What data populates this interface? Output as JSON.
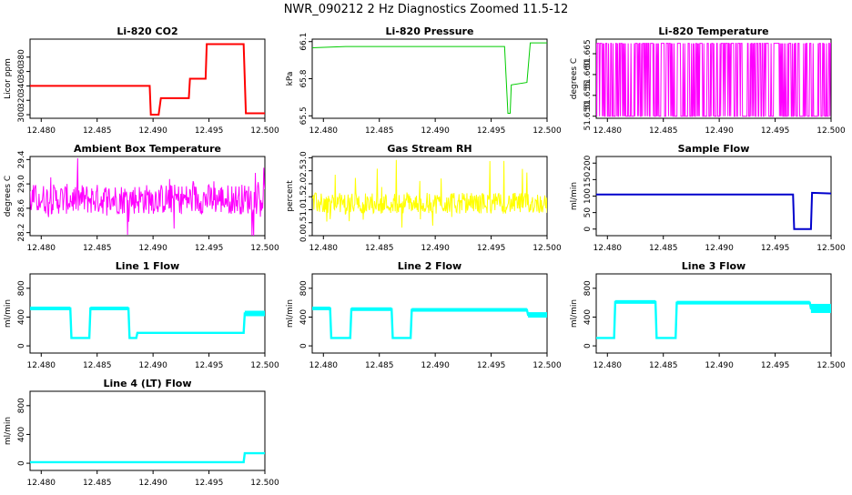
{
  "main_title": "NWR_090212  2 Hz Diagnostics Zoomed 11.5-12",
  "colors": {
    "red": "#ff0000",
    "green": "#00cc00",
    "magenta": "#ff00ff",
    "yellow": "#ffff00",
    "blue": "#0000cc",
    "cyan": "#00ffff"
  },
  "chart_data": [
    {
      "type": "line",
      "title": "Li-820 CO2",
      "ylabel": "Licor ppm",
      "xlim": [
        12.479,
        12.5
      ],
      "ylim": [
        295,
        405
      ],
      "xticks": [
        "12.480",
        "12.485",
        "12.490",
        "12.495",
        "12.500"
      ],
      "yticks": [
        "300",
        "320",
        "340",
        "360",
        "380"
      ],
      "color": "red",
      "series": [
        {
          "name": "CO2",
          "x": [
            12.479,
            12.4897,
            12.4898,
            12.4905,
            12.4907,
            12.4917,
            12.4918,
            12.4932,
            12.4933,
            12.4947,
            12.4948,
            12.4981,
            12.4983,
            12.5
          ],
          "values": [
            340,
            340,
            300,
            300,
            323,
            323,
            323,
            323,
            350,
            350,
            398,
            398,
            302,
            302
          ]
        }
      ]
    },
    {
      "type": "line",
      "title": "Li-820 Pressure",
      "ylabel": "kPa",
      "xlim": [
        12.479,
        12.5
      ],
      "ylim": [
        65.48,
        66.12
      ],
      "xticks": [
        "12.480",
        "12.485",
        "12.490",
        "12.495",
        "12.500"
      ],
      "yticks": [
        "65.5",
        "65.8",
        "66.1"
      ],
      "color": "green",
      "series": [
        {
          "name": "Pressure",
          "x": [
            12.479,
            12.482,
            12.486,
            12.49,
            12.494,
            12.4962,
            12.4965,
            12.4967,
            12.4968,
            12.4982,
            12.4985,
            12.5
          ],
          "values": [
            66.05,
            66.06,
            66.06,
            66.06,
            66.06,
            66.06,
            65.52,
            65.52,
            65.75,
            65.77,
            66.09,
            66.09
          ]
        }
      ]
    },
    {
      "type": "line",
      "title": "Li-820 Temperature",
      "ylabel": "degrees C",
      "xlim": [
        12.479,
        12.5
      ],
      "ylim": [
        51.6495,
        51.6685
      ],
      "xticks": [
        "12.480",
        "12.485",
        "12.490",
        "12.495",
        "12.500"
      ],
      "yticks": [
        "51.650",
        "51.655",
        "51.660",
        "51.665"
      ],
      "color": "magenta",
      "series": [
        {
          "name": "Temperature",
          "x": [],
          "values": []
        }
      ]
    },
    {
      "type": "line",
      "title": "Ambient Box Temperature",
      "ylabel": "degrees C",
      "xlim": [
        12.479,
        12.5
      ],
      "ylim": [
        28.15,
        29.45
      ],
      "xticks": [
        "12.480",
        "12.485",
        "12.490",
        "12.495",
        "12.500"
      ],
      "yticks": [
        "28.2",
        "28.6",
        "29.0",
        "29.4"
      ],
      "color": "magenta",
      "series": [
        {
          "name": "Box Temp",
          "x": [],
          "values": []
        }
      ]
    },
    {
      "type": "line",
      "title": "Gas Stream RH",
      "ylabel": "percent",
      "xlim": [
        12.479,
        12.5
      ],
      "ylim": [
        0,
        3.05
      ],
      "xticks": [
        "12.480",
        "12.485",
        "12.490",
        "12.495",
        "12.500"
      ],
      "yticks": [
        "0.0",
        "0.5",
        "1.0",
        "1.5",
        "2.0",
        "2.5",
        "3.0"
      ],
      "color": "yellow",
      "series": [
        {
          "name": "RH",
          "x": [],
          "values": []
        }
      ]
    },
    {
      "type": "line",
      "title": "Sample Flow",
      "ylabel": "ml/min",
      "xlim": [
        12.479,
        12.5
      ],
      "ylim": [
        -20,
        220
      ],
      "xticks": [
        "12.480",
        "12.485",
        "12.490",
        "12.495",
        "12.500"
      ],
      "yticks": [
        "0",
        "50",
        "100",
        "150",
        "200"
      ],
      "color": "blue",
      "series": [
        {
          "name": "Sample Flow",
          "x": [
            12.479,
            12.4966,
            12.4967,
            12.4982,
            12.4983,
            12.5
          ],
          "values": [
            105,
            105,
            0,
            0,
            110,
            108
          ]
        }
      ]
    },
    {
      "type": "line",
      "title": "Line 1 Flow",
      "ylabel": "ml/min",
      "xlim": [
        12.479,
        12.5
      ],
      "ylim": [
        -100,
        1000
      ],
      "xticks": [
        "12.480",
        "12.485",
        "12.490",
        "12.495",
        "12.500"
      ],
      "yticks": [
        "0",
        "400",
        "800"
      ],
      "color": "cyan",
      "series": [
        {
          "name": "Line 1",
          "x": [
            12.479,
            12.4826,
            12.4827,
            12.4843,
            12.4844,
            12.4878,
            12.4879,
            12.4885,
            12.4886,
            12.4981,
            12.4982,
            12.5
          ],
          "values": [
            520,
            520,
            110,
            110,
            520,
            520,
            110,
            110,
            180,
            180,
            450,
            450
          ]
        }
      ]
    },
    {
      "type": "line",
      "title": "Line 2 Flow",
      "ylabel": "ml/min",
      "xlim": [
        12.479,
        12.5
      ],
      "ylim": [
        -100,
        1000
      ],
      "xticks": [
        "12.480",
        "12.485",
        "12.490",
        "12.495",
        "12.500"
      ],
      "yticks": [
        "0",
        "400",
        "800"
      ],
      "color": "cyan",
      "series": [
        {
          "name": "Line 2",
          "x": [
            12.479,
            12.4806,
            12.4807,
            12.4824,
            12.4825,
            12.4861,
            12.4862,
            12.4878,
            12.4879,
            12.4982,
            12.4983,
            12.5
          ],
          "values": [
            520,
            520,
            110,
            110,
            510,
            510,
            110,
            110,
            500,
            500,
            430,
            430
          ]
        }
      ]
    },
    {
      "type": "line",
      "title": "Line 3 Flow",
      "ylabel": "ml/min",
      "xlim": [
        12.479,
        12.5
      ],
      "ylim": [
        -100,
        1000
      ],
      "xticks": [
        "12.480",
        "12.485",
        "12.490",
        "12.495",
        "12.500"
      ],
      "yticks": [
        "0",
        "400",
        "800"
      ],
      "color": "cyan",
      "series": [
        {
          "name": "Line 3",
          "x": [
            12.479,
            12.4806,
            12.4807,
            12.4843,
            12.4844,
            12.4861,
            12.4862,
            12.4981,
            12.4982,
            12.5
          ],
          "values": [
            110,
            110,
            610,
            610,
            110,
            110,
            600,
            600,
            520,
            520
          ]
        }
      ]
    },
    {
      "type": "line",
      "title": "Line 4 (LT) Flow",
      "ylabel": "ml/min",
      "xlim": [
        12.479,
        12.5
      ],
      "ylim": [
        -100,
        1000
      ],
      "xticks": [
        "12.480",
        "12.485",
        "12.490",
        "12.495",
        "12.500"
      ],
      "yticks": [
        "0",
        "400",
        "800"
      ],
      "color": "cyan",
      "series": [
        {
          "name": "Line 4",
          "x": [
            12.479,
            12.4981,
            12.4982,
            12.5
          ],
          "values": [
            15,
            15,
            140,
            140
          ]
        }
      ]
    }
  ]
}
